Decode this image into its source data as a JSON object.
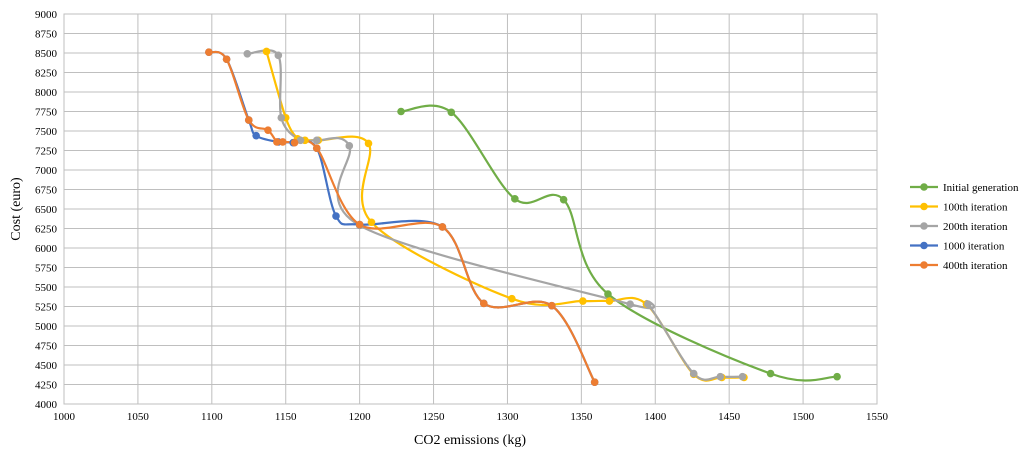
{
  "chart_data": {
    "type": "line",
    "xlabel": "CO2 emissions (kg)",
    "ylabel": "Cost (euro)",
    "xlim": [
      1000,
      1550
    ],
    "ylim": [
      4000,
      9000
    ],
    "xticks": [
      1000,
      1050,
      1100,
      1150,
      1200,
      1250,
      1300,
      1350,
      1400,
      1450,
      1500,
      1550
    ],
    "yticks": [
      4000,
      4250,
      4500,
      4750,
      5000,
      5250,
      5500,
      5750,
      6000,
      6250,
      6500,
      6750,
      7000,
      7250,
      7500,
      7750,
      8000,
      8250,
      8500,
      8750,
      9000
    ],
    "grid": true,
    "legend_position": "right",
    "smooth": true,
    "series": [
      {
        "name": "Initial generation",
        "color": "#70ad47",
        "points": [
          [
            1228,
            7750
          ],
          [
            1262,
            7740
          ],
          [
            1305,
            6630
          ],
          [
            1338,
            6620
          ],
          [
            1368,
            5410
          ],
          [
            1478,
            4390
          ],
          [
            1523,
            4350
          ]
        ]
      },
      {
        "name": "100th iteration",
        "color": "#ffc000",
        "points": [
          [
            1137,
            8520
          ],
          [
            1150,
            7670
          ],
          [
            1158,
            7400
          ],
          [
            1163,
            7380
          ],
          [
            1172,
            7380
          ],
          [
            1206,
            7340
          ],
          [
            1208,
            6330
          ],
          [
            1303,
            5350
          ],
          [
            1351,
            5320
          ],
          [
            1369,
            5320
          ],
          [
            1394,
            5280
          ],
          [
            1426,
            4380
          ],
          [
            1445,
            4340
          ],
          [
            1460,
            4340
          ]
        ]
      },
      {
        "name": "200th iteration",
        "color": "#a5a5a5",
        "points": [
          [
            1124,
            8490
          ],
          [
            1145,
            8470
          ],
          [
            1147,
            7670
          ],
          [
            1160,
            7380
          ],
          [
            1171,
            7380
          ],
          [
            1193,
            7310
          ],
          [
            1200,
            6290
          ],
          [
            1383,
            5280
          ],
          [
            1395,
            5280
          ],
          [
            1426,
            4390
          ],
          [
            1444,
            4350
          ],
          [
            1459,
            4350
          ]
        ]
      },
      {
        "name": "1000 iteration",
        "color": "#4472c4",
        "points": [
          [
            1098,
            8510
          ],
          [
            1110,
            8420
          ],
          [
            1125,
            7640
          ],
          [
            1130,
            7440
          ],
          [
            1145,
            7360
          ],
          [
            1155,
            7350
          ],
          [
            1171,
            7280
          ],
          [
            1184,
            6410
          ],
          [
            1200,
            6300
          ],
          [
            1256,
            6270
          ],
          [
            1284,
            5290
          ],
          [
            1330,
            5260
          ],
          [
            1359,
            4280
          ]
        ]
      },
      {
        "name": "400th iteration",
        "color": "#ed7d31",
        "points": [
          [
            1098,
            8510
          ],
          [
            1110,
            8420
          ],
          [
            1125,
            7640
          ],
          [
            1138,
            7510
          ],
          [
            1144,
            7360
          ],
          [
            1148,
            7360
          ],
          [
            1156,
            7350
          ],
          [
            1171,
            7280
          ],
          [
            1200,
            6300
          ],
          [
            1256,
            6270
          ],
          [
            1284,
            5290
          ],
          [
            1330,
            5260
          ],
          [
            1359,
            4280
          ]
        ]
      }
    ]
  }
}
